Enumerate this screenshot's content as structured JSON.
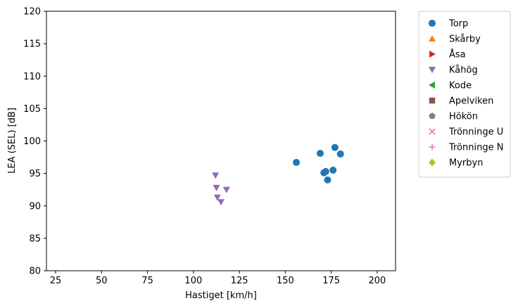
{
  "chart_data": {
    "type": "scatter",
    "xlabel": "Hastiget [km/h]",
    "ylabel": "LEA (SEL) [dB]",
    "xlim": [
      20,
      210
    ],
    "ylim": [
      80,
      120
    ],
    "xticks": [
      25,
      50,
      75,
      100,
      125,
      150,
      175,
      200
    ],
    "yticks": [
      80,
      85,
      90,
      95,
      100,
      105,
      110,
      115,
      120
    ],
    "grid": false,
    "legend_position": "outside-right",
    "series": [
      {
        "name": "Torp",
        "marker": "circle",
        "color": "#1f77b4",
        "points": [
          [
            156,
            96.7
          ],
          [
            169,
            98.1
          ],
          [
            171,
            95.1
          ],
          [
            172,
            95.3
          ],
          [
            173,
            94.0
          ],
          [
            176,
            95.5
          ],
          [
            177,
            99.0
          ],
          [
            180,
            98.0
          ]
        ]
      },
      {
        "name": "Skårby",
        "marker": "triangle-up",
        "color": "#ff7f0e",
        "points": []
      },
      {
        "name": "Åsa",
        "marker": "triangle-right",
        "color": "#d62728",
        "points": []
      },
      {
        "name": "Kåhög",
        "marker": "triangle-down",
        "color": "#9467bd",
        "points": [
          [
            112,
            94.7
          ],
          [
            112.5,
            92.8
          ],
          [
            113,
            91.3
          ],
          [
            115,
            90.6
          ],
          [
            118,
            92.5
          ]
        ]
      },
      {
        "name": "Kode",
        "marker": "triangle-left",
        "color": "#2ca02c",
        "points": []
      },
      {
        "name": "Apelviken",
        "marker": "square",
        "color": "#8c564b",
        "points": []
      },
      {
        "name": "Hökön",
        "marker": "pentagon",
        "color": "#7f7f7f",
        "points": []
      },
      {
        "name": "Trönninge U",
        "marker": "x",
        "color": "#e377c2",
        "points": []
      },
      {
        "name": "Trönninge N",
        "marker": "plus",
        "color": "#e377c2",
        "points": []
      },
      {
        "name": "Myrbyn",
        "marker": "diamond",
        "color": "#bcbd22",
        "points": []
      }
    ]
  }
}
